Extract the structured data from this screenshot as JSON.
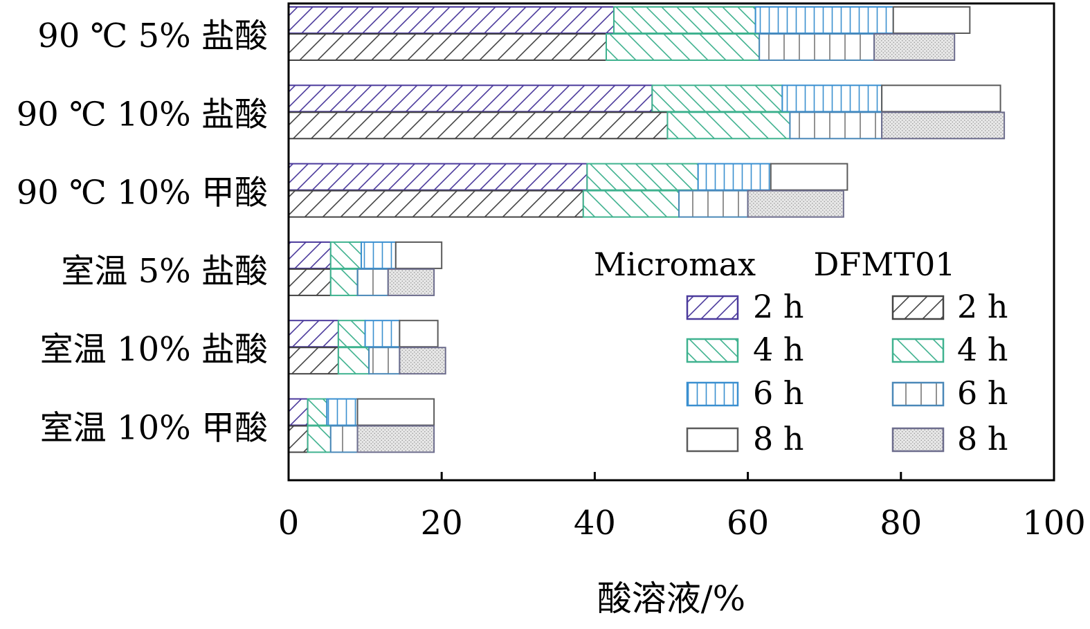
{
  "chart_data": {
    "type": "bar",
    "orientation": "horizontal",
    "stacked": true,
    "xlabel": "酸溶液/%",
    "xlim": [
      0,
      100
    ],
    "xticks": [
      0,
      20,
      40,
      60,
      80,
      100
    ],
    "categories": [
      "90 ℃ 5% 盐酸",
      "90 ℃ 10% 盐酸",
      "90 ℃ 10% 甲酸",
      "室温 5% 盐酸",
      "室温 10% 盐酸",
      "室温 10% 甲酸"
    ],
    "legend": {
      "position": "right-inside",
      "groups": [
        "Micromax",
        "DFMT01"
      ],
      "entries": [
        "2 h",
        "4 h",
        "6 h",
        "8 h"
      ]
    },
    "series": [
      {
        "name": "Micromax",
        "cumulative": {
          "2 h": [
            42.5,
            47.5,
            39,
            5.5,
            6.5,
            2.5
          ],
          "4 h": [
            61,
            64.5,
            53.5,
            9.5,
            10,
            5
          ],
          "6 h": [
            79,
            77.5,
            63,
            14,
            14.5,
            9
          ],
          "8 h": [
            89,
            93,
            73,
            20,
            19.5,
            19
          ]
        }
      },
      {
        "name": "DFMT01",
        "cumulative": {
          "2 h": [
            41.5,
            49.5,
            38.5,
            5.5,
            6.5,
            2.5
          ],
          "4 h": [
            61.5,
            65.5,
            51,
            9,
            10.5,
            5.5
          ],
          "6 h": [
            76.5,
            77.5,
            60,
            13,
            14.5,
            9
          ],
          "8 h": [
            87,
            93.5,
            72.5,
            19,
            20.5,
            19
          ]
        }
      }
    ],
    "colors": {
      "micromax_2h": "#4b3a9c",
      "micromax_4h": "#3fb28f",
      "micromax_6h": "#3a8fd0",
      "micromax_8h": "#5a5a5a",
      "dfmt01_2h": "#444444",
      "dfmt01_4h": "#3fb28f",
      "dfmt01_6h": "#4a88b8",
      "dfmt01_8h": "#6c6c8c"
    }
  }
}
